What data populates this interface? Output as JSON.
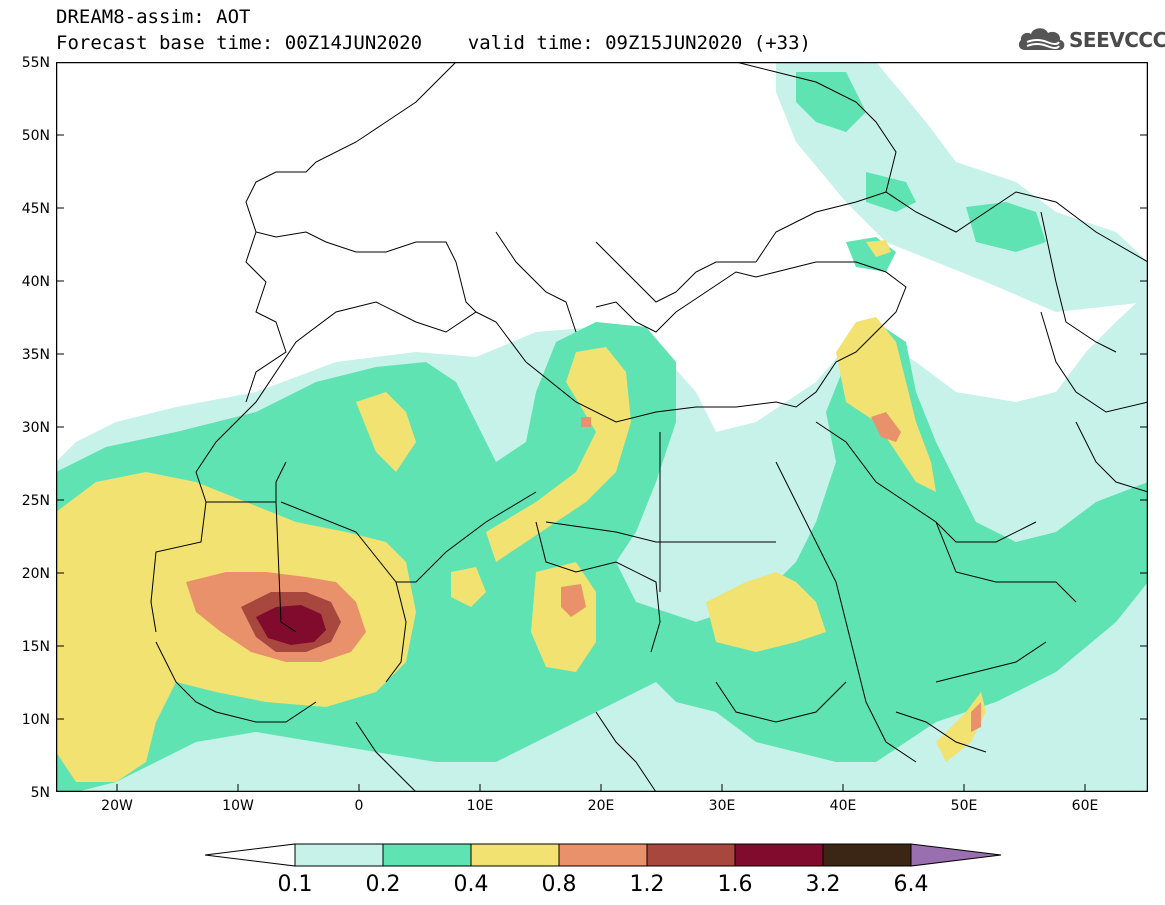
{
  "header": {
    "title_line1": "DREAM8-assim: AOT",
    "title_line2": "Forecast base time: 00Z14JUN2020    valid time: 09Z15JUN2020 (+33)"
  },
  "logo": {
    "text": "SEEVCCC",
    "icon": "cloud-icon"
  },
  "map": {
    "lat_labels": [
      "55N",
      "50N",
      "45N",
      "40N",
      "35N",
      "30N",
      "25N",
      "20N",
      "15N",
      "10N",
      "5N"
    ],
    "lon_labels": [
      "20W",
      "10W",
      "0",
      "10E",
      "20E",
      "30E",
      "40E",
      "50E",
      "60E"
    ],
    "colors": {
      "bg": "#ffffff",
      "c01": "#c6f2ea",
      "c02": "#5fe3b2",
      "c04": "#f2e272",
      "c08": "#e9916a",
      "c12": "#a7473e",
      "c16": "#800b2c",
      "c32": "#3b2615",
      "c64": "#9a6fb0",
      "borders": "#000000"
    }
  },
  "colorbar": {
    "labels": [
      "0.1",
      "0.2",
      "0.4",
      "0.8",
      "1.2",
      "1.6",
      "3.2",
      "6.4"
    ]
  }
}
